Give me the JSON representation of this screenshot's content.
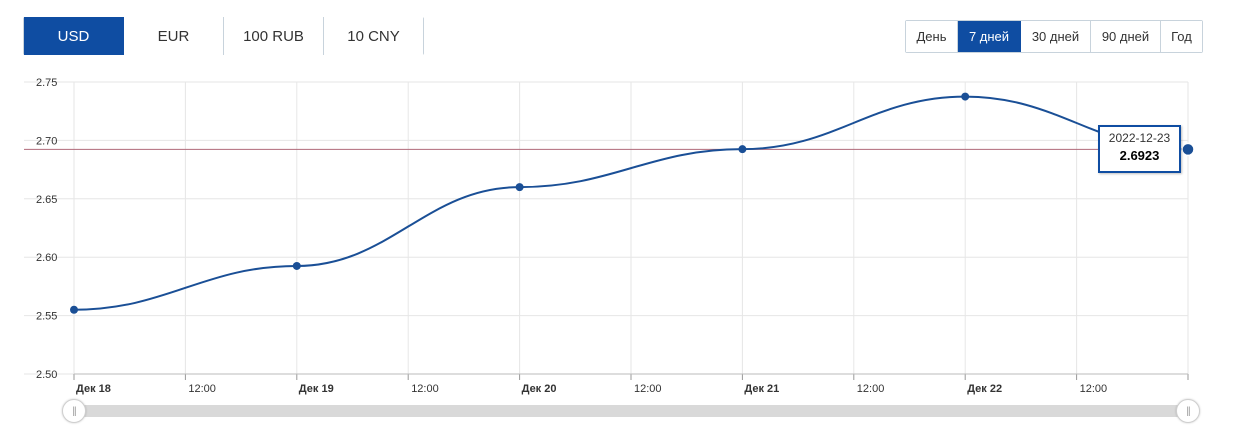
{
  "currency_tabs": [
    {
      "label": "USD",
      "active": true
    },
    {
      "label": "EUR",
      "active": false
    },
    {
      "label": "100 RUB",
      "active": false
    },
    {
      "label": "10 CNY",
      "active": false
    }
  ],
  "period_tabs": [
    {
      "label": "День",
      "active": false
    },
    {
      "label": "7 дней",
      "active": true
    },
    {
      "label": "30 дней",
      "active": false
    },
    {
      "label": "90 дней",
      "active": false
    },
    {
      "label": "Год",
      "active": false
    }
  ],
  "tooltip": {
    "date": "2022-12-23",
    "value": "2.6923"
  },
  "navigator": {
    "grip_glyph": "||"
  },
  "colors": {
    "accent": "#0f4da2",
    "line": "#1a4f96",
    "reference_line": "#b06a7a",
    "grid": "#e6e6e6"
  },
  "chart_data": {
    "type": "line",
    "x_ticks": [
      {
        "label": "Дек 18",
        "major": true
      },
      {
        "label": "12:00",
        "major": false
      },
      {
        "label": "Дек 19",
        "major": true
      },
      {
        "label": "12:00",
        "major": false
      },
      {
        "label": "Дек 20",
        "major": true
      },
      {
        "label": "12:00",
        "major": false
      },
      {
        "label": "Дек 21",
        "major": true
      },
      {
        "label": "12:00",
        "major": false
      },
      {
        "label": "Дек 22",
        "major": true
      },
      {
        "label": "12:00",
        "major": false
      }
    ],
    "y_ticks": [
      "2.75",
      "2.70",
      "2.65",
      "2.60",
      "2.55",
      "2.50"
    ],
    "ylim": [
      2.5,
      2.75
    ],
    "points": [
      {
        "date": "2022-12-18",
        "value": 2.555
      },
      {
        "date": "2022-12-19",
        "value": 2.5925
      },
      {
        "date": "2022-12-20",
        "value": 2.66
      },
      {
        "date": "2022-12-21",
        "value": 2.6925
      },
      {
        "date": "2022-12-22",
        "value": 2.7375
      },
      {
        "date": "2022-12-23",
        "value": 2.6923
      }
    ],
    "reference_value": 2.6923,
    "grid": true
  }
}
